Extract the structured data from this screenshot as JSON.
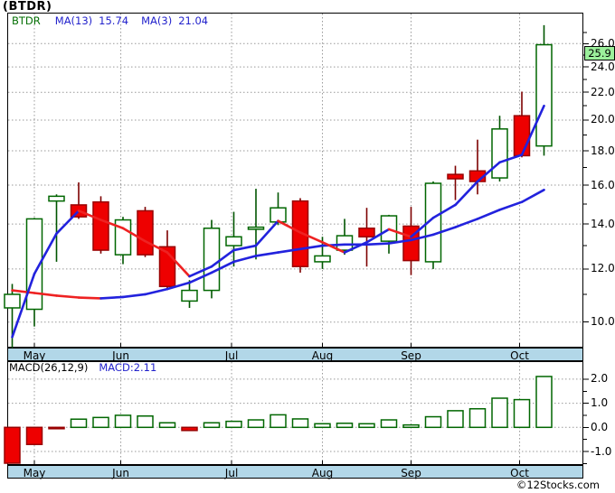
{
  "title": "(BTDR)",
  "legend": {
    "symbol": "BTDR",
    "ma13_label": "MA(13)",
    "ma13_value": "15.74",
    "ma3_label": "MA(3)",
    "ma3_value": "21.04"
  },
  "macd_header": {
    "label": "MACD(26,12,9)",
    "value": "MACD:2.11"
  },
  "price_axis": {
    "major_ticks": [
      26.0,
      24.0,
      22.0,
      20.0,
      18.0,
      16.0,
      14.0,
      12.0,
      10.0
    ],
    "minor_ticks": [
      27,
      25,
      23,
      21,
      19,
      17,
      15,
      13,
      11
    ],
    "last_price": "25.9"
  },
  "macd_axis": {
    "major_ticks": [
      2.0,
      1.0,
      0.0,
      -1.0
    ],
    "minor_ticks": [
      1.5,
      0.5,
      -0.5,
      -1.5
    ]
  },
  "months": [
    {
      "label": "May",
      "i": 1.0
    },
    {
      "label": "Jun",
      "i": 4.9
    },
    {
      "label": "Jul",
      "i": 9.9
    },
    {
      "label": "Aug",
      "i": 14.0
    },
    {
      "label": "Sep",
      "i": 18.0
    },
    {
      "label": "Oct",
      "i": 22.9
    }
  ],
  "branding": "©12Stocks.com",
  "colors": {
    "up_stroke": "#006600",
    "up_wick": "#005500",
    "up_fill": "#ffffff",
    "down_fill": "#ee0000",
    "down_stroke": "#990000",
    "down_wick": "#7d0000",
    "ma_rising": "#2222dd",
    "ma_falling": "#ee2222",
    "grid": "#999999",
    "band": "#b2d7e8",
    "badge": "#9bef9b",
    "legend_blue": "#2222cc",
    "legend_green": "#067006"
  },
  "chart_data": {
    "type": "candlestick",
    "interval": "weekly",
    "scale": "log",
    "title": "(BTDR)",
    "x_axis_months": [
      "May",
      "Jun",
      "Jul",
      "Aug",
      "Sep",
      "Oct"
    ],
    "price_range": [
      9.15,
      28.0
    ],
    "macd_range": [
      -1.6,
      2.2
    ],
    "candles": [
      {
        "o": 10.5,
        "h": 11.4,
        "l": 9.15,
        "c": 11.0
      },
      {
        "o": 10.45,
        "h": 14.3,
        "l": 9.85,
        "c": 14.25
      },
      {
        "o": 15.15,
        "h": 15.5,
        "l": 12.3,
        "c": 15.4
      },
      {
        "o": 14.95,
        "h": 16.15,
        "l": 14.25,
        "c": 14.35
      },
      {
        "o": 15.1,
        "h": 15.4,
        "l": 12.65,
        "c": 12.8
      },
      {
        "o": 12.6,
        "h": 14.35,
        "l": 12.2,
        "c": 14.2
      },
      {
        "o": 14.65,
        "h": 14.85,
        "l": 12.5,
        "c": 12.6
      },
      {
        "o": 12.95,
        "h": 13.7,
        "l": 11.2,
        "c": 11.3
      },
      {
        "o": 10.75,
        "h": 11.55,
        "l": 10.5,
        "c": 11.15
      },
      {
        "o": 11.15,
        "h": 14.2,
        "l": 10.85,
        "c": 13.8
      },
      {
        "o": 13.0,
        "h": 14.6,
        "l": 12.1,
        "c": 13.4
      },
      {
        "o": 13.75,
        "h": 15.8,
        "l": 12.4,
        "c": 13.85
      },
      {
        "o": 14.1,
        "h": 15.6,
        "l": 13.95,
        "c": 14.8
      },
      {
        "o": 15.15,
        "h": 15.3,
        "l": 11.85,
        "c": 12.1
      },
      {
        "o": 12.3,
        "h": 13.4,
        "l": 12.0,
        "c": 12.55
      },
      {
        "o": 12.8,
        "h": 14.25,
        "l": 12.6,
        "c": 13.45
      },
      {
        "o": 13.8,
        "h": 14.8,
        "l": 12.1,
        "c": 13.4
      },
      {
        "o": 13.2,
        "h": 14.45,
        "l": 12.65,
        "c": 14.4
      },
      {
        "o": 13.9,
        "h": 14.85,
        "l": 11.75,
        "c": 12.35
      },
      {
        "o": 12.3,
        "h": 16.2,
        "l": 12.0,
        "c": 16.1
      },
      {
        "o": 16.6,
        "h": 17.1,
        "l": 15.2,
        "c": 16.35
      },
      {
        "o": 16.8,
        "h": 18.7,
        "l": 15.5,
        "c": 16.2
      },
      {
        "o": 16.4,
        "h": 20.3,
        "l": 16.2,
        "c": 19.4
      },
      {
        "o": 20.3,
        "h": 22.05,
        "l": 17.6,
        "c": 17.7
      },
      {
        "o": 18.3,
        "h": 27.7,
        "l": 17.7,
        "c": 25.9
      }
    ],
    "ma3": [
      9.5,
      11.8,
      13.55,
      14.65,
      14.2,
      13.8,
      13.2,
      12.7,
      11.7,
      12.1,
      12.8,
      13.0,
      14.15,
      13.6,
      13.15,
      12.7,
      13.15,
      13.75,
      13.4,
      14.3,
      14.95,
      16.2,
      17.3,
      17.75,
      21.0
    ],
    "ma13": [
      11.15,
      11.05,
      10.95,
      10.88,
      10.85,
      10.9,
      11.0,
      11.2,
      11.45,
      11.85,
      12.3,
      12.55,
      12.7,
      12.85,
      13.0,
      13.05,
      13.05,
      13.1,
      13.25,
      13.5,
      13.85,
      14.25,
      14.7,
      15.1,
      15.74
    ],
    "macd_histogram": [
      -1.55,
      -0.71,
      -0.05,
      0.34,
      0.41,
      0.5,
      0.47,
      0.19,
      -0.13,
      0.19,
      0.25,
      0.31,
      0.52,
      0.35,
      0.15,
      0.17,
      0.15,
      0.31,
      0.1,
      0.44,
      0.69,
      0.77,
      1.21,
      1.15,
      2.11
    ]
  }
}
